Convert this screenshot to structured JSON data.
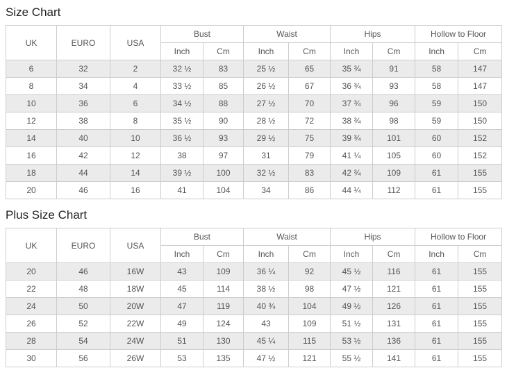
{
  "header": {
    "uk": "UK",
    "euro": "EURO",
    "usa": "USA",
    "groups": [
      "Bust",
      "Waist",
      "Hips",
      "Hollow to Floor"
    ],
    "sub_inch": "Inch",
    "sub_cm": "Cm"
  },
  "colors": {
    "stripe": "#ebebeb",
    "border": "#cccccc",
    "text": "#555555",
    "title_text": "#222222"
  },
  "sections": [
    {
      "title": "Size Chart",
      "rows": [
        [
          "6",
          "32",
          "2",
          "32 ½",
          "83",
          "25 ½",
          "65",
          "35 ¾",
          "91",
          "58",
          "147"
        ],
        [
          "8",
          "34",
          "4",
          "33 ½",
          "85",
          "26 ½",
          "67",
          "36 ¾",
          "93",
          "58",
          "147"
        ],
        [
          "10",
          "36",
          "6",
          "34 ½",
          "88",
          "27 ½",
          "70",
          "37 ¾",
          "96",
          "59",
          "150"
        ],
        [
          "12",
          "38",
          "8",
          "35 ½",
          "90",
          "28 ½",
          "72",
          "38 ¾",
          "98",
          "59",
          "150"
        ],
        [
          "14",
          "40",
          "10",
          "36 ½",
          "93",
          "29 ½",
          "75",
          "39 ¾",
          "101",
          "60",
          "152"
        ],
        [
          "16",
          "42",
          "12",
          "38",
          "97",
          "31",
          "79",
          "41 ¼",
          "105",
          "60",
          "152"
        ],
        [
          "18",
          "44",
          "14",
          "39 ½",
          "100",
          "32 ½",
          "83",
          "42 ¾",
          "109",
          "61",
          "155"
        ],
        [
          "20",
          "46",
          "16",
          "41",
          "104",
          "34",
          "86",
          "44 ¼",
          "112",
          "61",
          "155"
        ]
      ]
    },
    {
      "title": "Plus Size Chart",
      "rows": [
        [
          "20",
          "46",
          "16W",
          "43",
          "109",
          "36 ¼",
          "92",
          "45 ½",
          "116",
          "61",
          "155"
        ],
        [
          "22",
          "48",
          "18W",
          "45",
          "114",
          "38 ½",
          "98",
          "47 ½",
          "121",
          "61",
          "155"
        ],
        [
          "24",
          "50",
          "20W",
          "47",
          "119",
          "40 ¾",
          "104",
          "49 ½",
          "126",
          "61",
          "155"
        ],
        [
          "26",
          "52",
          "22W",
          "49",
          "124",
          "43",
          "109",
          "51 ½",
          "131",
          "61",
          "155"
        ],
        [
          "28",
          "54",
          "24W",
          "51",
          "130",
          "45 ¼",
          "115",
          "53 ½",
          "136",
          "61",
          "155"
        ],
        [
          "30",
          "56",
          "26W",
          "53",
          "135",
          "47 ½",
          "121",
          "55 ½",
          "141",
          "61",
          "155"
        ]
      ]
    }
  ]
}
